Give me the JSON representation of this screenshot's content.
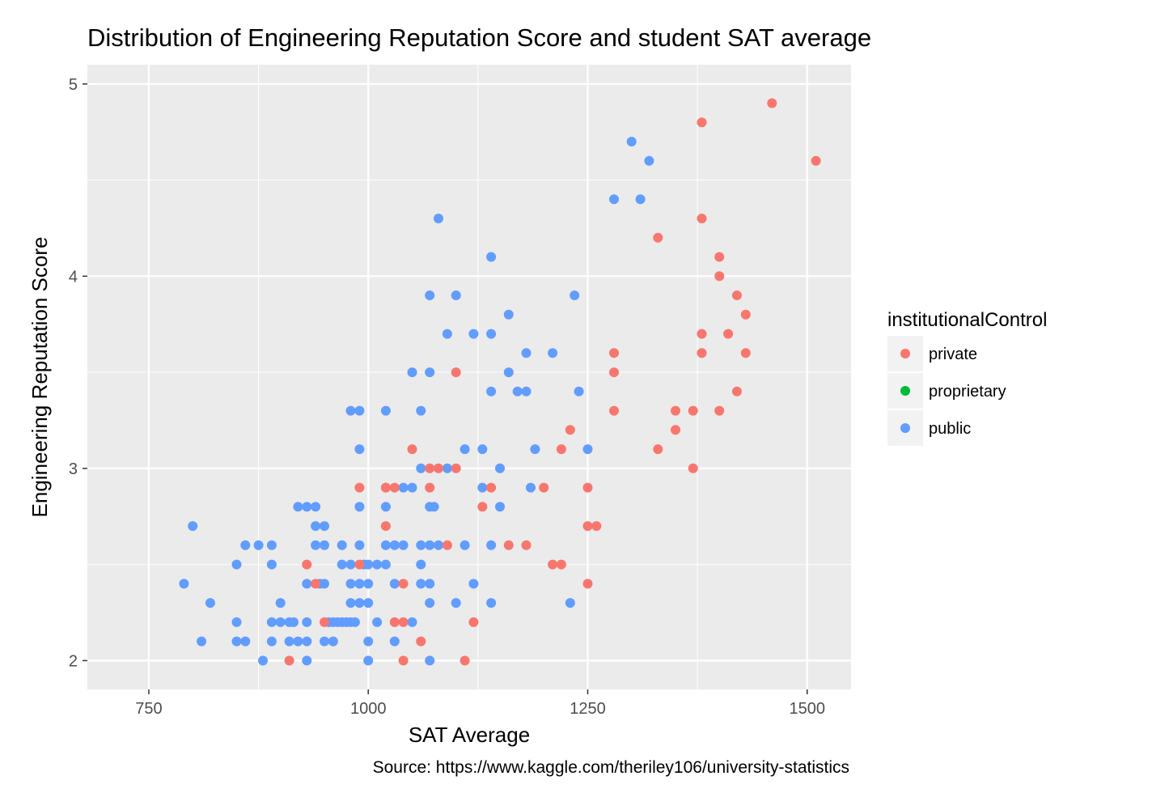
{
  "chart_data": {
    "type": "scatter",
    "title": "Distribution of Engineering Reputation Score and student SAT average",
    "xlabel": "SAT Average",
    "ylabel": "Engineering Reputation Score",
    "caption": "Source: https://www.kaggle.com/theriley106/university-statistics",
    "xlim": [
      680,
      1550
    ],
    "ylim": [
      1.85,
      5.1
    ],
    "x_ticks": [
      750,
      1000,
      1250,
      1500
    ],
    "y_ticks": [
      2,
      3,
      4,
      5
    ],
    "x_tick_labels": [
      "750",
      "1000",
      "1250",
      "1500"
    ],
    "y_tick_labels": [
      "2",
      "3",
      "4",
      "5"
    ],
    "grid": true,
    "background": "#ebebeb",
    "legend": {
      "title": "institutionalControl",
      "position": "right",
      "entries": [
        {
          "label": "private",
          "color": "#f8766d"
        },
        {
          "label": "proprietary",
          "color": "#00ba38"
        },
        {
          "label": "public",
          "color": "#619cff"
        }
      ]
    },
    "series": [
      {
        "name": "public",
        "color": "#619cff",
        "points": [
          [
            790,
            2.4
          ],
          [
            800,
            2.7
          ],
          [
            810,
            2.1
          ],
          [
            820,
            2.3
          ],
          [
            850,
            2.5
          ],
          [
            850,
            2.2
          ],
          [
            850,
            2.1
          ],
          [
            860,
            2.6
          ],
          [
            860,
            2.1
          ],
          [
            875,
            2.6
          ],
          [
            880,
            2.0
          ],
          [
            890,
            2.6
          ],
          [
            890,
            2.5
          ],
          [
            890,
            2.2
          ],
          [
            890,
            2.1
          ],
          [
            900,
            2.3
          ],
          [
            900,
            2.2
          ],
          [
            910,
            2.2
          ],
          [
            910,
            2.1
          ],
          [
            915,
            2.2
          ],
          [
            920,
            2.8
          ],
          [
            920,
            2.1
          ],
          [
            930,
            2.8
          ],
          [
            930,
            2.4
          ],
          [
            930,
            2.2
          ],
          [
            930,
            2.1
          ],
          [
            930,
            2.0
          ],
          [
            940,
            2.8
          ],
          [
            940,
            2.7
          ],
          [
            940,
            2.6
          ],
          [
            945,
            2.4
          ],
          [
            950,
            2.7
          ],
          [
            950,
            2.6
          ],
          [
            950,
            2.4
          ],
          [
            950,
            2.1
          ],
          [
            955,
            2.2
          ],
          [
            960,
            2.2
          ],
          [
            960,
            2.1
          ],
          [
            965,
            2.2
          ],
          [
            970,
            2.2
          ],
          [
            970,
            2.6
          ],
          [
            970,
            2.5
          ],
          [
            975,
            2.2
          ],
          [
            980,
            3.3
          ],
          [
            980,
            2.5
          ],
          [
            980,
            2.4
          ],
          [
            980,
            2.3
          ],
          [
            980,
            2.2
          ],
          [
            985,
            2.2
          ],
          [
            990,
            3.3
          ],
          [
            990,
            3.1
          ],
          [
            990,
            2.8
          ],
          [
            990,
            2.6
          ],
          [
            990,
            2.4
          ],
          [
            990,
            2.3
          ],
          [
            995,
            2.5
          ],
          [
            1000,
            2.5
          ],
          [
            1000,
            2.4
          ],
          [
            1000,
            2.3
          ],
          [
            1000,
            2.1
          ],
          [
            1000,
            2.0
          ],
          [
            1010,
            2.5
          ],
          [
            1010,
            2.2
          ],
          [
            1020,
            3.3
          ],
          [
            1020,
            2.9
          ],
          [
            1020,
            2.8
          ],
          [
            1020,
            2.6
          ],
          [
            1020,
            2.5
          ],
          [
            1030,
            2.6
          ],
          [
            1030,
            2.4
          ],
          [
            1030,
            2.1
          ],
          [
            1040,
            2.9
          ],
          [
            1040,
            2.6
          ],
          [
            1050,
            2.9
          ],
          [
            1050,
            3.5
          ],
          [
            1050,
            2.2
          ],
          [
            1060,
            3.3
          ],
          [
            1060,
            3.0
          ],
          [
            1060,
            2.6
          ],
          [
            1060,
            2.5
          ],
          [
            1060,
            2.4
          ],
          [
            1070,
            3.9
          ],
          [
            1070,
            3.5
          ],
          [
            1070,
            2.8
          ],
          [
            1070,
            2.6
          ],
          [
            1070,
            2.4
          ],
          [
            1070,
            2.3
          ],
          [
            1070,
            2.0
          ],
          [
            1075,
            2.8
          ],
          [
            1080,
            4.3
          ],
          [
            1080,
            2.6
          ],
          [
            1090,
            3.7
          ],
          [
            1090,
            3.0
          ],
          [
            1100,
            3.9
          ],
          [
            1100,
            2.3
          ],
          [
            1110,
            3.1
          ],
          [
            1110,
            2.6
          ],
          [
            1120,
            3.7
          ],
          [
            1120,
            2.4
          ],
          [
            1130,
            3.1
          ],
          [
            1130,
            2.9
          ],
          [
            1140,
            4.1
          ],
          [
            1140,
            3.7
          ],
          [
            1140,
            3.4
          ],
          [
            1140,
            2.6
          ],
          [
            1140,
            2.3
          ],
          [
            1150,
            3.0
          ],
          [
            1150,
            2.8
          ],
          [
            1160,
            3.8
          ],
          [
            1160,
            3.5
          ],
          [
            1170,
            3.4
          ],
          [
            1180,
            3.6
          ],
          [
            1180,
            3.4
          ],
          [
            1185,
            2.9
          ],
          [
            1190,
            3.1
          ],
          [
            1210,
            3.6
          ],
          [
            1230,
            2.3
          ],
          [
            1235,
            3.9
          ],
          [
            1240,
            3.4
          ],
          [
            1250,
            3.1
          ],
          [
            1280,
            4.4
          ],
          [
            1300,
            4.7
          ],
          [
            1310,
            4.4
          ],
          [
            1320,
            4.6
          ]
        ]
      },
      {
        "name": "private",
        "color": "#f8766d",
        "points": [
          [
            910,
            2.0
          ],
          [
            930,
            2.5
          ],
          [
            940,
            2.4
          ],
          [
            950,
            2.2
          ],
          [
            990,
            2.9
          ],
          [
            990,
            2.5
          ],
          [
            1020,
            2.7
          ],
          [
            1020,
            2.9
          ],
          [
            1030,
            2.9
          ],
          [
            1030,
            2.2
          ],
          [
            1040,
            2.4
          ],
          [
            1040,
            2.2
          ],
          [
            1040,
            2.0
          ],
          [
            1050,
            3.1
          ],
          [
            1060,
            2.1
          ],
          [
            1070,
            3.0
          ],
          [
            1070,
            2.9
          ],
          [
            1080,
            3.0
          ],
          [
            1090,
            2.6
          ],
          [
            1100,
            3.5
          ],
          [
            1100,
            3.0
          ],
          [
            1110,
            2.0
          ],
          [
            1120,
            2.2
          ],
          [
            1130,
            2.8
          ],
          [
            1140,
            2.9
          ],
          [
            1160,
            2.6
          ],
          [
            1180,
            2.6
          ],
          [
            1200,
            2.9
          ],
          [
            1210,
            2.5
          ],
          [
            1220,
            2.5
          ],
          [
            1220,
            3.1
          ],
          [
            1230,
            3.2
          ],
          [
            1250,
            2.9
          ],
          [
            1250,
            2.7
          ],
          [
            1250,
            2.4
          ],
          [
            1260,
            2.7
          ],
          [
            1280,
            3.6
          ],
          [
            1280,
            3.5
          ],
          [
            1280,
            3.3
          ],
          [
            1330,
            4.2
          ],
          [
            1330,
            3.1
          ],
          [
            1350,
            3.3
          ],
          [
            1350,
            3.2
          ],
          [
            1370,
            3.3
          ],
          [
            1370,
            3.0
          ],
          [
            1380,
            4.8
          ],
          [
            1380,
            4.3
          ],
          [
            1380,
            3.7
          ],
          [
            1380,
            3.6
          ],
          [
            1400,
            4.1
          ],
          [
            1400,
            4.0
          ],
          [
            1400,
            3.3
          ],
          [
            1410,
            3.7
          ],
          [
            1420,
            3.9
          ],
          [
            1420,
            3.4
          ],
          [
            1430,
            3.8
          ],
          [
            1430,
            3.6
          ],
          [
            1460,
            4.9
          ],
          [
            1510,
            4.6
          ]
        ]
      }
    ]
  }
}
